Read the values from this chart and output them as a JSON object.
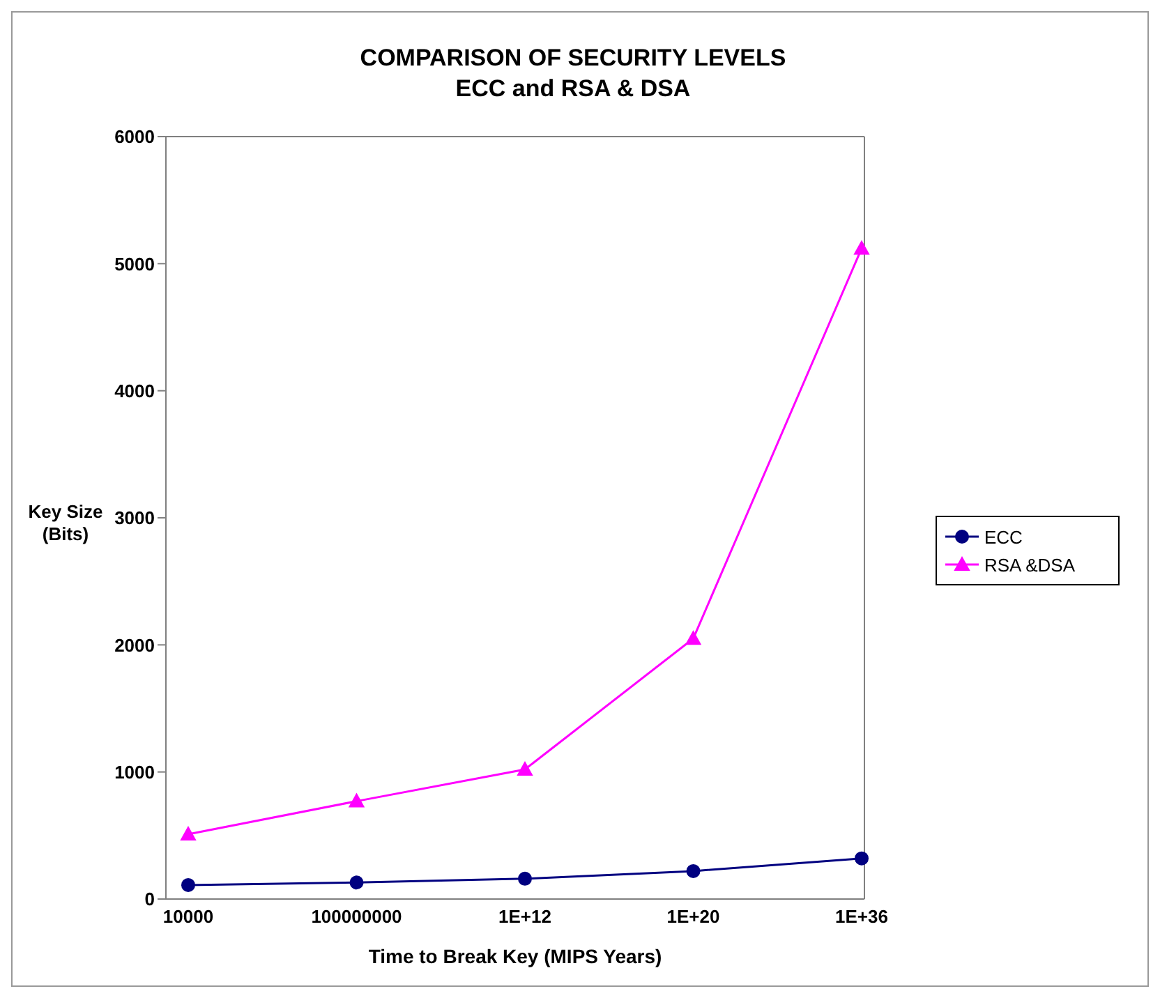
{
  "chart_data": {
    "type": "line",
    "title": "COMPARISON OF SECURITY LEVELS",
    "subtitle": "ECC and RSA & DSA",
    "xlabel": "Time to Break Key (MIPS Years)",
    "ylabel": "Key Size\n(Bits)",
    "categories": [
      "10000",
      "100000000",
      "1E+12",
      "1E+20",
      "1E+36"
    ],
    "series": [
      {
        "name": "ECC",
        "color": "#000080",
        "marker": "circle",
        "values": [
          110,
          130,
          160,
          220,
          320
        ]
      },
      {
        "name": "RSA &DSA",
        "color": "#ff00ff",
        "marker": "triangle",
        "values": [
          510,
          770,
          1020,
          2050,
          5120
        ]
      }
    ],
    "ylim": [
      0,
      6000
    ],
    "yticks": [
      0,
      1000,
      2000,
      3000,
      4000,
      5000,
      6000
    ],
    "legend": "right"
  }
}
